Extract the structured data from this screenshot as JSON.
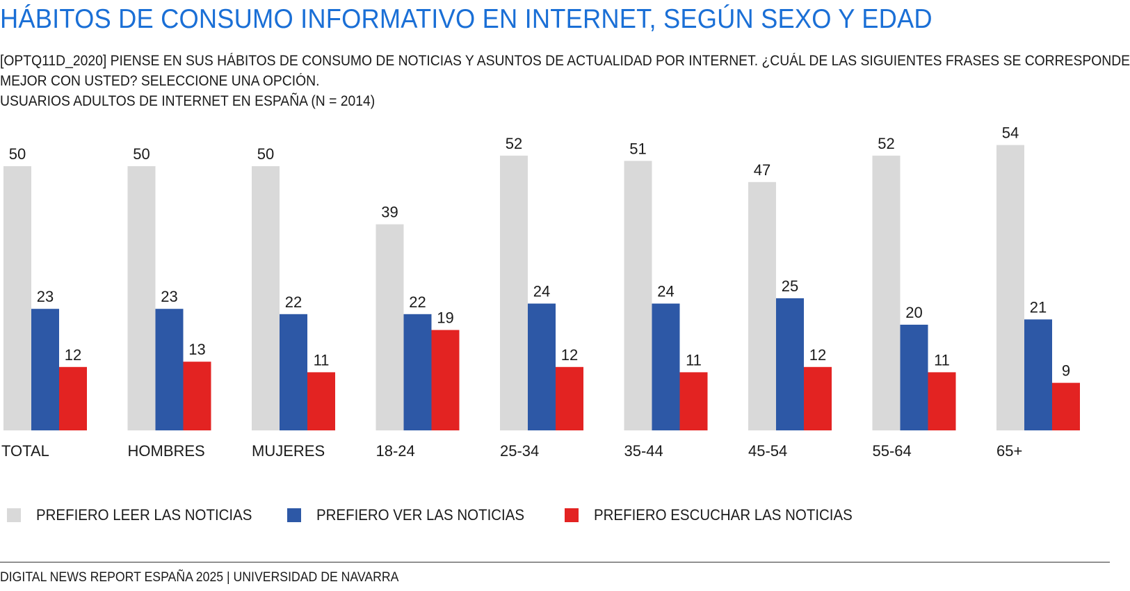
{
  "title": "HÁBITOS DE CONSUMO INFORMATIVO EN INTERNET, SEGÚN SEXO Y EDAD",
  "subtitle_lines": [
    "[OPTQ11D_2020] PIENSE EN SUS HÁBITOS DE CONSUMO DE NOTICIAS Y ASUNTOS DE ACTUALIDAD POR INTERNET. ¿CUÁL DE LAS SIGUIENTES FRASES SE CORRESPONDE",
    "MEJOR CON USTED? SELECCIONE UNA OPCIÓN.",
    "USUARIOS ADULTOS DE INTERNET EN ESPAÑA (N = 2014)"
  ],
  "footer": "DIGITAL NEWS REPORT ESPAÑA 2025 | UNIVERSIDAD DE NAVARRA",
  "chart_data": {
    "type": "bar",
    "title": "HÁBITOS DE CONSUMO INFORMATIVO EN INTERNET, SEGÚN SEXO Y EDAD",
    "xlabel": "",
    "ylabel": "",
    "ylim": [
      0,
      54
    ],
    "grid": false,
    "legend_position": "bottom",
    "categories": [
      "TOTAL",
      "HOMBRES",
      "MUJERES",
      "18-24",
      "25-34",
      "35-44",
      "45-54",
      "55-64",
      "65+"
    ],
    "series": [
      {
        "name": "PREFIERO LEER LAS NOTICIAS",
        "color": "#d9d9d9",
        "values": [
          50,
          50,
          50,
          39,
          52,
          51,
          47,
          52,
          54
        ]
      },
      {
        "name": "PREFIERO VER LAS NOTICIAS",
        "color": "#2d58a6",
        "values": [
          23,
          23,
          22,
          22,
          24,
          24,
          25,
          20,
          21
        ]
      },
      {
        "name": "PREFIERO ESCUCHAR LAS NOTICIAS",
        "color": "#e32322",
        "values": [
          12,
          13,
          11,
          19,
          12,
          11,
          12,
          11,
          9
        ]
      }
    ]
  }
}
